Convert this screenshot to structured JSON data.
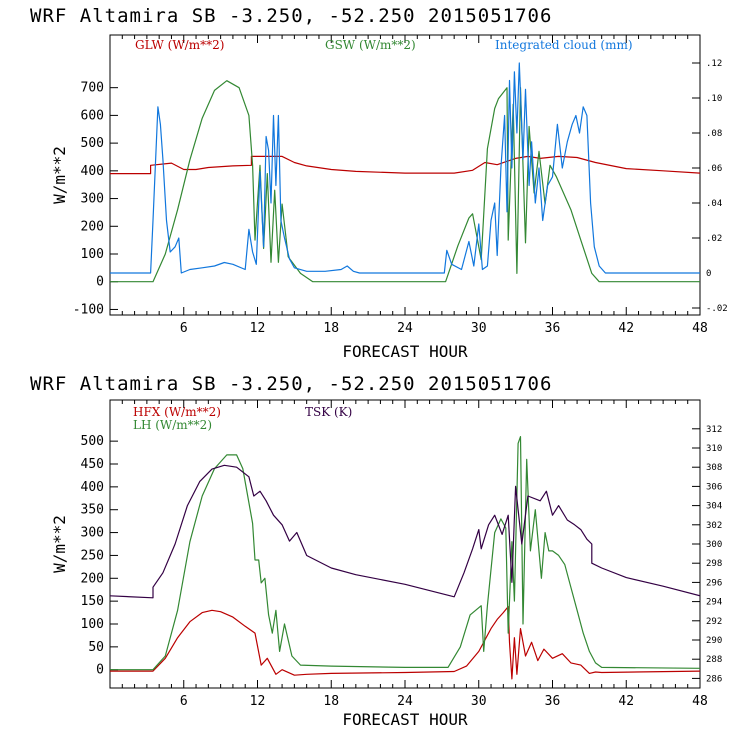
{
  "chart_data": [
    {
      "type": "line",
      "title": "WRF   Altamira  SB  -3.250, -52.250  2015051706",
      "xlabel": "FORECAST HOUR",
      "ylabel": "W/m**2",
      "xlim": [
        0,
        48
      ],
      "ylim": [
        -120,
        890
      ],
      "y2lim": [
        -0.024,
        0.136
      ],
      "xticks": [
        "6",
        "12",
        "18",
        "24",
        "30",
        "36",
        "42",
        "48"
      ],
      "yticks": [
        "-100",
        "0",
        "100",
        "200",
        "300",
        "400",
        "500",
        "600",
        "700"
      ],
      "y2ticks": [
        "-.02",
        "0",
        ".02",
        ".04",
        ".06",
        ".08",
        ".10",
        ".12"
      ],
      "legend": [
        "GLW (W/m**2)",
        "GSW (W/m**2)",
        "Integrated cloud (mm)"
      ],
      "series": [
        {
          "name": "GLW (W/m**2)",
          "color": "#bb0000",
          "axis": "left",
          "x": [
            0,
            3.3,
            3.3,
            5,
            6,
            7,
            8,
            10,
            11.5,
            11.5,
            14,
            15,
            16,
            18,
            20,
            24,
            28,
            29.5,
            30.5,
            31.5,
            33,
            34,
            35,
            36.5,
            38,
            39.5,
            42,
            45,
            48
          ],
          "y": [
            390,
            390,
            420,
            428,
            405,
            405,
            412,
            418,
            420,
            452,
            452,
            430,
            418,
            405,
            398,
            392,
            392,
            402,
            430,
            422,
            445,
            452,
            445,
            452,
            448,
            430,
            408,
            400,
            392
          ]
        },
        {
          "name": "GSW (W/m**2)",
          "color": "#338833",
          "axis": "left",
          "x": [
            0,
            3.5,
            4.5,
            5.5,
            6.5,
            7.5,
            8.5,
            9.5,
            10.5,
            11.3,
            11.6,
            11.8,
            12.2,
            12.5,
            12.8,
            13.1,
            13.4,
            13.7,
            14,
            14.5,
            15.5,
            16.5,
            27.3,
            28.3,
            29.2,
            29.5,
            30.2,
            30.7,
            31.3,
            31.6,
            32.3,
            32.4,
            32.8,
            33.1,
            33.4,
            33.8,
            34.1,
            34.5,
            34.9,
            35.4,
            35.8,
            36.3,
            36.8,
            37.5,
            38.3,
            39.2,
            39.8,
            48
          ],
          "y": [
            0,
            0,
            100,
            260,
            440,
            590,
            690,
            725,
            700,
            600,
            420,
            150,
            420,
            120,
            390,
            70,
            330,
            70,
            280,
            90,
            30,
            0,
            0,
            130,
            230,
            245,
            80,
            480,
            625,
            660,
            700,
            150,
            640,
            30,
            700,
            140,
            560,
            320,
            470,
            280,
            420,
            380,
            330,
            260,
            150,
            30,
            0,
            0
          ]
        },
        {
          "name": "Integrated cloud (mm)",
          "color": "#1177dd",
          "axis": "right",
          "x": [
            0,
            3.3,
            3.5,
            3.9,
            4.1,
            4.3,
            4.6,
            4.9,
            5.3,
            5.6,
            5.8,
            6.5,
            7.5,
            8.5,
            9.3,
            10,
            11,
            11.3,
            11.6,
            11.9,
            12.2,
            12.5,
            12.7,
            12.9,
            13.1,
            13.3,
            13.5,
            13.7,
            13.9,
            14.2,
            14.6,
            15,
            16,
            17.5,
            18.8,
            19.3,
            19.8,
            20.3,
            27.2,
            27.4,
            27.8,
            28.6,
            29.2,
            29.6,
            30,
            30.3,
            30.7,
            31,
            31.3,
            31.5,
            31.8,
            32.1,
            32.3,
            32.5,
            32.7,
            32.9,
            33.1,
            33.3,
            33.6,
            33.8,
            34.1,
            34.3,
            34.6,
            34.9,
            35.2,
            35.6,
            36,
            36.4,
            36.8,
            37.2,
            37.6,
            37.9,
            38.2,
            38.5,
            38.8,
            39.1,
            39.4,
            39.8,
            40.3,
            48
          ],
          "y": [
            0,
            0,
            0.03,
            0.095,
            0.085,
            0.065,
            0.03,
            0.012,
            0.015,
            0.02,
            0,
            0.002,
            0.003,
            0.004,
            0.006,
            0.005,
            0.002,
            0.025,
            0.012,
            0.005,
            0.058,
            0.015,
            0.078,
            0.07,
            0.04,
            0.09,
            0.05,
            0.09,
            0.03,
            0.02,
            0.008,
            0.003,
            0.001,
            0.001,
            0.002,
            0.004,
            0.001,
            0,
            0,
            0.013,
            0.005,
            0.002,
            0.018,
            0.004,
            0.028,
            0.002,
            0.004,
            0.03,
            0.04,
            0.01,
            0.06,
            0.09,
            0.035,
            0.11,
            0.06,
            0.115,
            0.08,
            0.12,
            0.065,
            0.105,
            0.05,
            0.075,
            0.04,
            0.06,
            0.03,
            0.05,
            0.055,
            0.085,
            0.06,
            0.075,
            0.085,
            0.09,
            0.08,
            0.095,
            0.09,
            0.04,
            0.015,
            0.004,
            0,
            0
          ]
        }
      ]
    },
    {
      "type": "line",
      "title": "WRF   Altamira  SB  -3.250, -52.250  2015051706",
      "xlabel": "FORECAST HOUR",
      "ylabel": "W/m**2",
      "xlim": [
        0,
        48
      ],
      "ylim": [
        -40,
        590
      ],
      "y2lim": [
        285,
        315
      ],
      "xticks": [
        "6",
        "12",
        "18",
        "24",
        "30",
        "36",
        "42",
        "48"
      ],
      "yticks": [
        "0",
        "50",
        "100",
        "150",
        "200",
        "250",
        "300",
        "350",
        "400",
        "450",
        "500"
      ],
      "y2ticks": [
        "286",
        "288",
        "290",
        "292",
        "294",
        "296",
        "298",
        "300",
        "302",
        "304",
        "306",
        "308",
        "310",
        "312"
      ],
      "legend": [
        "HFX (W/m**2)",
        "LH  (W/m**2)",
        "TSK (K)"
      ],
      "series": [
        {
          "name": "HFX (W/m**2)",
          "color": "#bb0000",
          "axis": "left",
          "x": [
            0,
            3.5,
            4.5,
            5.5,
            6.5,
            7.5,
            8.3,
            9,
            10,
            11,
            11.8,
            12.3,
            12.8,
            13.5,
            14,
            15,
            16,
            18,
            24,
            28,
            29,
            30,
            30.5,
            31,
            31.5,
            32,
            32.4,
            32.5,
            32.7,
            32.9,
            33.1,
            33.4,
            33.8,
            34.3,
            34.8,
            35.3,
            36,
            36.8,
            37.5,
            38.3,
            39,
            39.5,
            40,
            48
          ],
          "y": [
            -3,
            -3,
            25,
            70,
            105,
            125,
            130,
            127,
            115,
            95,
            80,
            10,
            25,
            -10,
            0,
            -12,
            -10,
            -8,
            -6,
            -4,
            8,
            40,
            65,
            90,
            110,
            125,
            138,
            60,
            -20,
            70,
            -10,
            90,
            30,
            60,
            20,
            45,
            25,
            35,
            15,
            10,
            -8,
            -5,
            -6,
            -3
          ]
        },
        {
          "name": "LH  (W/m**2)",
          "color": "#338833",
          "axis": "left",
          "x": [
            0,
            3.5,
            4.5,
            5.5,
            6.5,
            7.5,
            8.5,
            9.5,
            10.3,
            10.8,
            11.2,
            11.6,
            11.8,
            12.1,
            12.3,
            12.6,
            12.9,
            13.2,
            13.5,
            13.8,
            14.2,
            14.8,
            15.5,
            18,
            24,
            27.5,
            28.5,
            29.3,
            30.2,
            30.4,
            30.7,
            31.3,
            31.8,
            32.2,
            32.4,
            32.7,
            32.9,
            33.2,
            33.4,
            33.6,
            33.9,
            34.2,
            34.6,
            35.1,
            35.4,
            35.7,
            36,
            36.5,
            37,
            37.5,
            38,
            38.5,
            39,
            39.5,
            40,
            48
          ],
          "y": [
            0,
            0,
            30,
            130,
            280,
            380,
            440,
            470,
            470,
            440,
            380,
            320,
            240,
            240,
            190,
            200,
            120,
            80,
            130,
            40,
            100,
            30,
            10,
            8,
            5,
            5,
            50,
            120,
            140,
            40,
            140,
            300,
            330,
            310,
            80,
            280,
            150,
            495,
            510,
            100,
            460,
            260,
            350,
            200,
            300,
            260,
            260,
            250,
            230,
            180,
            130,
            80,
            40,
            15,
            5,
            3
          ]
        },
        {
          "name": "TSK (K)",
          "color": "#330044",
          "axis": "right",
          "x": [
            0,
            3.5,
            3.5,
            4.3,
            5.3,
            6.3,
            7.3,
            8.3,
            9.3,
            10.3,
            11.3,
            11.7,
            12.2,
            12.7,
            13.3,
            14,
            14.6,
            15.2,
            16,
            18,
            20,
            24,
            28,
            28.8,
            29.5,
            30,
            30.2,
            30.8,
            31.3,
            31.9,
            32.4,
            32.7,
            33,
            33.5,
            34,
            35,
            35.5,
            36,
            36.5,
            37.2,
            37.8,
            38.3,
            38.8,
            39.2,
            39.2,
            40,
            42,
            45,
            48
          ],
          "y": [
            294.6,
            294.4,
            295.5,
            297,
            300,
            304,
            306.5,
            307.8,
            308.2,
            308,
            307,
            305,
            305.5,
            304.5,
            303,
            302,
            300.3,
            301.2,
            298.8,
            297.5,
            296.8,
            295.8,
            294.5,
            297,
            299.5,
            301.5,
            299.5,
            302,
            303,
            301,
            303,
            296,
            306,
            300,
            305,
            304.5,
            305.5,
            303,
            304,
            302.5,
            302,
            301.5,
            300.5,
            300,
            298,
            297.5,
            296.5,
            295.6,
            294.6
          ]
        }
      ]
    }
  ]
}
